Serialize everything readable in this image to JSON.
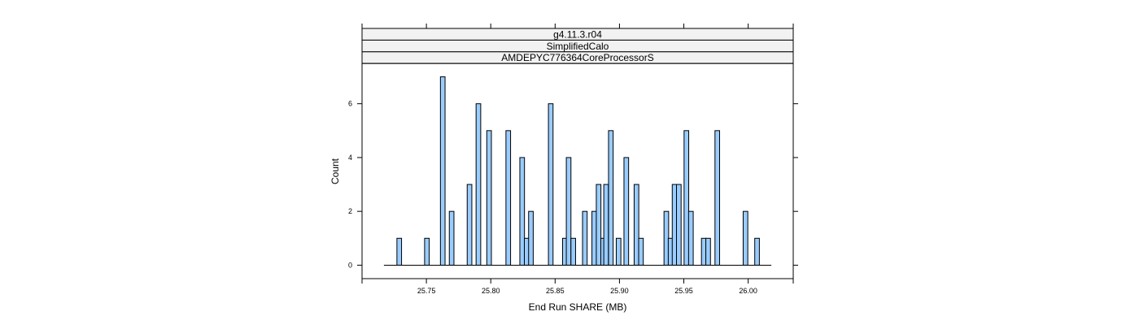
{
  "chart_data": {
    "type": "bar",
    "strips": [
      "g4.11.3.r04",
      "SimplifiedCalo",
      "AMDEPYC776364CoreProcessorS"
    ],
    "xlabel": "End Run SHARE (MB)",
    "ylabel": "Count",
    "xlim": [
      25.7,
      26.035
    ],
    "ylim": [
      -0.5,
      7.5
    ],
    "xticks": [
      25.75,
      25.8,
      25.85,
      25.9,
      25.95,
      26.0
    ],
    "xtick_labels": [
      "25.75",
      "25.80",
      "25.85",
      "25.90",
      "25.95",
      "26.00"
    ],
    "yticks": [
      0,
      2,
      4,
      6
    ],
    "ytick_labels": [
      "0",
      "2",
      "4",
      "6"
    ],
    "baseline_range": [
      25.717,
      26.018
    ],
    "bin_width": 0.0036,
    "bin_centers": [
      25.7289,
      25.7504,
      25.7627,
      25.7696,
      25.7835,
      25.7904,
      25.7987,
      25.8136,
      25.8244,
      25.8279,
      25.8312,
      25.8466,
      25.8576,
      25.8605,
      25.8641,
      25.8731,
      25.8804,
      25.8838,
      25.8873,
      25.8896,
      25.8933,
      25.8993,
      25.9053,
      25.9132,
      25.9167,
      25.9364,
      25.9397,
      25.9428,
      25.9461,
      25.952,
      25.9555,
      25.9655,
      25.9689,
      25.976,
      25.9979,
      26.0069
    ],
    "counts": [
      1,
      1,
      7,
      2,
      3,
      6,
      5,
      5,
      4,
      1,
      2,
      6,
      1,
      4,
      1,
      2,
      2,
      3,
      1,
      3,
      5,
      1,
      4,
      3,
      1,
      2,
      1,
      3,
      3,
      5,
      2,
      1,
      1,
      5,
      2,
      1
    ],
    "colors": {
      "bar_fill": "#99ccff",
      "bar_stroke": "#000000",
      "strip_fill": "#f2f2f2",
      "frame": "#000000"
    },
    "grid": false,
    "legend": "none"
  }
}
